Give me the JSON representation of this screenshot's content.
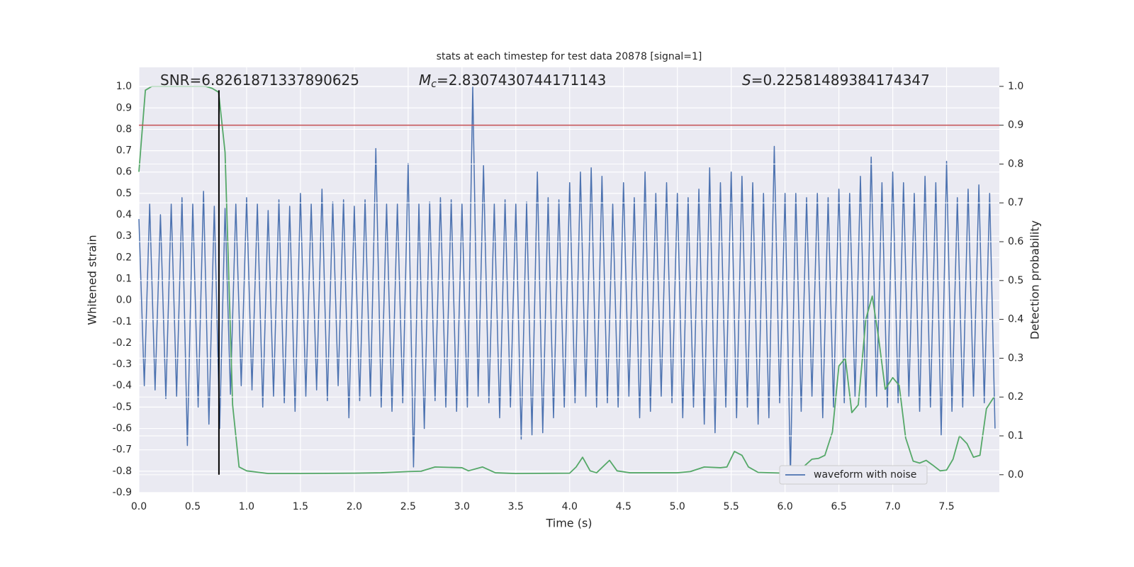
{
  "chart_data": {
    "type": "line",
    "title": "stats at each timestep for test data 20878 [signal=1]",
    "xlabel": "Time (s)",
    "ylabel": "Whitened strain",
    "y2label": "Detection probability",
    "annotations": [
      {
        "text": "SNR=6.8261871337890625"
      },
      {
        "symbol": "M",
        "subscript": "c",
        "text": "=2.8307430744171143"
      },
      {
        "symbol": "S",
        "text": "=0.22581489384174347"
      }
    ],
    "xlim": [
      0,
      7.99
    ],
    "xticks": [
      {
        "value": 0,
        "label": "0.0"
      },
      0.5,
      {
        "value": 1,
        "label": "1.0"
      },
      1.5,
      {
        "value": 2,
        "label": "2.0"
      },
      2.5,
      {
        "value": 3,
        "label": "3.0"
      },
      3.5,
      {
        "value": 4,
        "label": "4.0"
      },
      4.5,
      {
        "value": 5,
        "label": "5.0"
      },
      5.5,
      {
        "value": 6,
        "label": "6.0"
      },
      6.5,
      {
        "value": 7,
        "label": "7.0"
      },
      7.5
    ],
    "ylim": [
      -0.9,
      1.09
    ],
    "yticks": [
      -0.9,
      -0.8,
      -0.7,
      -0.6,
      -0.5,
      -0.4,
      -0.3,
      -0.2,
      -0.1,
      {
        "value": 0,
        "label": "0.0"
      },
      0.1,
      0.2,
      0.3,
      0.4,
      0.5,
      0.6,
      0.7,
      0.8,
      0.9,
      {
        "value": 1,
        "label": "1.0"
      }
    ],
    "y2lim": [
      -0.046,
      1.049
    ],
    "y2ticks": [
      {
        "value": 0,
        "label": "0.0"
      },
      0.1,
      0.2,
      0.3,
      0.4,
      0.5,
      0.6,
      0.7,
      0.8,
      0.9,
      {
        "value": 1,
        "label": "1.0"
      }
    ],
    "grid": true,
    "legend": "lower right",
    "background": "#eaeaf2",
    "hline": {
      "value": 0.9,
      "axis": "y2",
      "color": "#c44e52"
    },
    "vline": {
      "x": 0.743,
      "from": 0,
      "to": 0.99,
      "axis": "y2",
      "color": "#000000"
    },
    "series": [
      {
        "name": "waveform with noise",
        "color": "#4c72b0",
        "x": [
          0,
          0.05,
          0.1,
          0.15,
          0.2,
          0.25,
          0.3,
          0.35,
          0.4,
          0.45,
          0.5,
          0.55,
          0.6,
          0.65,
          0.7,
          0.75,
          0.8,
          0.85,
          0.9,
          0.95,
          1,
          1.05,
          1.1,
          1.15,
          1.2,
          1.25,
          1.3,
          1.35,
          1.4,
          1.45,
          1.5,
          1.55,
          1.6,
          1.65,
          1.7,
          1.75,
          1.8,
          1.85,
          1.9,
          1.95,
          2,
          2.05,
          2.1,
          2.15,
          2.2,
          2.25,
          2.3,
          2.35,
          2.4,
          2.45,
          2.5,
          2.55,
          2.6,
          2.65,
          2.7,
          2.75,
          2.8,
          2.85,
          2.9,
          2.95,
          3,
          3.05,
          3.1,
          3.15,
          3.2,
          3.25,
          3.3,
          3.35,
          3.4,
          3.45,
          3.5,
          3.55,
          3.6,
          3.65,
          3.7,
          3.75,
          3.8,
          3.85,
          3.9,
          3.95,
          4,
          4.05,
          4.1,
          4.15,
          4.2,
          4.25,
          4.3,
          4.35,
          4.4,
          4.45,
          4.5,
          4.55,
          4.6,
          4.65,
          4.7,
          4.75,
          4.8,
          4.85,
          4.9,
          4.95,
          5,
          5.05,
          5.1,
          5.15,
          5.2,
          5.25,
          5.3,
          5.35,
          5.4,
          5.45,
          5.5,
          5.55,
          5.6,
          5.65,
          5.7,
          5.75,
          5.8,
          5.85,
          5.9,
          5.95,
          6,
          6.05,
          6.1,
          6.15,
          6.2,
          6.25,
          6.3,
          6.35,
          6.4,
          6.45,
          6.5,
          6.55,
          6.6,
          6.65,
          6.7,
          6.75,
          6.8,
          6.85,
          6.9,
          6.95,
          7,
          7.05,
          7.1,
          7.15,
          7.2,
          7.25,
          7.3,
          7.35,
          7.4,
          7.45,
          7.5,
          7.55,
          7.6,
          7.65,
          7.7,
          7.75,
          7.8,
          7.85,
          7.9,
          7.95
        ],
        "values": [
          0.38,
          -0.4,
          0.45,
          -0.42,
          0.4,
          -0.46,
          0.45,
          -0.45,
          0.48,
          -0.68,
          0.45,
          -0.5,
          0.51,
          -0.58,
          0.44,
          -0.6,
          0.43,
          -0.44,
          0.45,
          -0.4,
          0.48,
          -0.42,
          0.45,
          -0.5,
          0.42,
          -0.45,
          0.47,
          -0.48,
          0.44,
          -0.52,
          0.5,
          -0.45,
          0.45,
          -0.42,
          0.52,
          -0.47,
          0.46,
          -0.4,
          0.47,
          -0.55,
          0.44,
          -0.47,
          0.47,
          -0.45,
          0.71,
          -0.5,
          0.45,
          -0.52,
          0.45,
          -0.48,
          0.64,
          -0.78,
          0.45,
          -0.6,
          0.46,
          -0.47,
          0.48,
          -0.5,
          0.47,
          -0.52,
          0.45,
          -0.5,
          1.0,
          -0.45,
          0.63,
          -0.48,
          0.45,
          -0.55,
          0.47,
          -0.5,
          0.45,
          -0.65,
          0.46,
          -0.63,
          0.6,
          -0.62,
          0.48,
          -0.55,
          0.47,
          -0.5,
          0.55,
          -0.48,
          0.6,
          -0.45,
          0.62,
          -0.5,
          0.58,
          -0.48,
          0.45,
          -0.5,
          0.55,
          -0.45,
          0.48,
          -0.55,
          0.6,
          -0.52,
          0.5,
          -0.45,
          0.55,
          -0.48,
          0.5,
          -0.55,
          0.48,
          -0.5,
          0.52,
          -0.58,
          0.62,
          -0.62,
          0.55,
          -0.5,
          0.6,
          -0.55,
          0.58,
          -0.5,
          0.55,
          -0.58,
          0.5,
          -0.55,
          0.72,
          -0.48,
          0.5,
          -0.82,
          0.5,
          -0.52,
          0.48,
          -0.45,
          0.5,
          -0.55,
          0.48,
          -0.5,
          0.52,
          -0.48,
          0.5,
          -0.45,
          0.58,
          -0.5,
          0.67,
          -0.45,
          0.55,
          -0.5,
          0.6,
          -0.48,
          0.55,
          -0.45,
          0.5,
          -0.52,
          0.58,
          -0.5,
          0.55,
          -0.63,
          0.65,
          -0.52,
          0.48,
          -0.5,
          0.52,
          -0.45,
          0.54,
          -0.48,
          0.5,
          -0.6
        ]
      },
      {
        "color": "#55a868",
        "axis": "y2",
        "x": [
          0,
          0.06,
          0.12,
          0.25,
          0.5,
          0.62,
          0.68,
          0.74,
          0.8,
          0.87,
          0.93,
          1,
          1.2,
          1.5,
          2,
          2.25,
          2.5,
          2.62,
          2.75,
          3,
          3.06,
          3.19,
          3.31,
          3.5,
          4,
          4.06,
          4.12,
          4.19,
          4.25,
          4.37,
          4.44,
          4.56,
          5,
          5.12,
          5.25,
          5.4,
          5.46,
          5.53,
          5.6,
          5.66,
          5.75,
          6,
          6.12,
          6.19,
          6.25,
          6.31,
          6.37,
          6.44,
          6.5,
          6.56,
          6.62,
          6.68,
          6.75,
          6.81,
          6.87,
          6.93,
          7,
          7.06,
          7.12,
          7.19,
          7.25,
          7.31,
          7.37,
          7.44,
          7.5,
          7.56,
          7.62,
          7.69,
          7.75,
          7.81,
          7.87,
          7.94
        ],
        "values": [
          0.78,
          0.99,
          1.0,
          1.0,
          1.0,
          1.0,
          0.995,
          0.985,
          0.83,
          0.18,
          0.02,
          0.01,
          0.003,
          0.003,
          0.004,
          0.005,
          0.008,
          0.009,
          0.02,
          0.018,
          0.01,
          0.02,
          0.005,
          0.003,
          0.004,
          0.02,
          0.045,
          0.01,
          0.005,
          0.037,
          0.01,
          0.005,
          0.005,
          0.008,
          0.02,
          0.018,
          0.02,
          0.06,
          0.05,
          0.02,
          0.006,
          0.004,
          0.01,
          0.025,
          0.04,
          0.042,
          0.05,
          0.11,
          0.28,
          0.3,
          0.16,
          0.18,
          0.4,
          0.46,
          0.35,
          0.22,
          0.25,
          0.23,
          0.095,
          0.035,
          0.03,
          0.037,
          0.025,
          0.01,
          0.012,
          0.04,
          0.1,
          0.08,
          0.045,
          0.05,
          0.17,
          0.2
        ]
      }
    ]
  }
}
